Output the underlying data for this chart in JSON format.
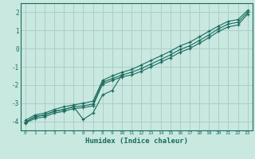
{
  "xlabel": "Humidex (Indice chaleur)",
  "ylabel": "",
  "background_color": "#c8e8e0",
  "grid_color": "#b0cdc8",
  "line_color": "#1a6b5e",
  "xlim": [
    -0.5,
    23.5
  ],
  "ylim": [
    -4.5,
    2.5
  ],
  "xticks": [
    0,
    1,
    2,
    3,
    4,
    5,
    6,
    7,
    8,
    9,
    10,
    11,
    12,
    13,
    14,
    15,
    16,
    17,
    18,
    19,
    20,
    21,
    22,
    23
  ],
  "yticks": [
    -4,
    -3,
    -2,
    -1,
    0,
    1,
    2
  ],
  "main_x": [
    0,
    1,
    2,
    3,
    4,
    5,
    6,
    7,
    8,
    9,
    10,
    11,
    12,
    13,
    14,
    15,
    16,
    17,
    18,
    19,
    20,
    21,
    22,
    23
  ],
  "main_y": [
    -4.05,
    -3.75,
    -3.65,
    -3.45,
    -3.35,
    -3.2,
    -3.15,
    -3.05,
    -1.85,
    -1.65,
    -1.45,
    -1.3,
    -1.1,
    -0.85,
    -0.6,
    -0.35,
    -0.05,
    0.15,
    0.45,
    0.75,
    1.1,
    1.35,
    1.45,
    2.0
  ],
  "upper_x": [
    0,
    1,
    2,
    3,
    4,
    5,
    6,
    7,
    8,
    9,
    10,
    11,
    12,
    13,
    14,
    15,
    16,
    17,
    18,
    19,
    20,
    21,
    22,
    23
  ],
  "upper_y": [
    -3.95,
    -3.65,
    -3.55,
    -3.35,
    -3.2,
    -3.1,
    -3.0,
    -2.9,
    -1.75,
    -1.5,
    -1.3,
    -1.15,
    -0.9,
    -0.65,
    -0.4,
    -0.15,
    0.15,
    0.35,
    0.65,
    0.95,
    1.25,
    1.5,
    1.6,
    2.1
  ],
  "lower_x": [
    0,
    1,
    2,
    3,
    4,
    5,
    6,
    7,
    8,
    9,
    10,
    11,
    12,
    13,
    14,
    15,
    16,
    17,
    18,
    19,
    20,
    21,
    22,
    23
  ],
  "lower_y": [
    -4.1,
    -3.85,
    -3.75,
    -3.55,
    -3.45,
    -3.3,
    -3.25,
    -3.15,
    -1.95,
    -1.75,
    -1.55,
    -1.45,
    -1.25,
    -1.0,
    -0.75,
    -0.5,
    -0.2,
    0.0,
    0.3,
    0.6,
    0.95,
    1.2,
    1.3,
    1.9
  ],
  "anomaly_x": [
    0,
    1,
    2,
    3,
    4,
    5,
    6,
    7,
    8,
    9,
    10
  ],
  "anomaly_y": [
    -4.05,
    -3.75,
    -3.65,
    -3.45,
    -3.35,
    -3.2,
    -3.9,
    -3.55,
    -2.55,
    -2.3,
    -1.45
  ]
}
